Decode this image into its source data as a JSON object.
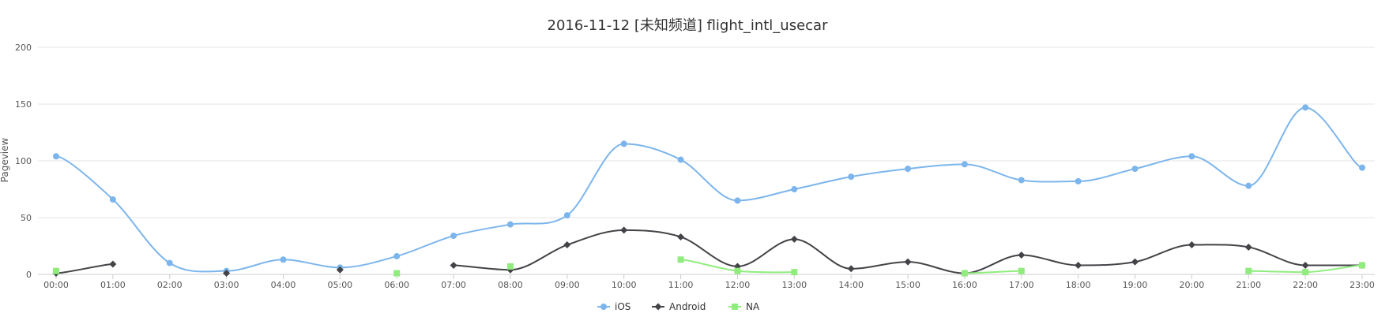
{
  "chart_data": {
    "type": "line",
    "title": "2016-11-12 [未知频道] flight_intl_usecar",
    "xlabel": "",
    "ylabel": "Pageview",
    "ylim": [
      0,
      200
    ],
    "yticks": [
      0,
      50,
      100,
      150,
      200
    ],
    "grid": true,
    "legend_position": "bottom-center",
    "categories": [
      "00:00",
      "01:00",
      "02:00",
      "03:00",
      "04:00",
      "05:00",
      "06:00",
      "07:00",
      "08:00",
      "09:00",
      "10:00",
      "11:00",
      "12:00",
      "13:00",
      "14:00",
      "15:00",
      "16:00",
      "17:00",
      "18:00",
      "19:00",
      "20:00",
      "21:00",
      "22:00",
      "23:00"
    ],
    "series": [
      {
        "name": "iOS",
        "color": "#7cb5ec",
        "marker": "circle",
        "values": [
          104,
          66,
          10,
          3,
          13,
          6,
          16,
          34,
          44,
          52,
          115,
          101,
          65,
          75,
          86,
          93,
          97,
          83,
          82,
          93,
          104,
          78,
          147,
          94
        ]
      },
      {
        "name": "Android",
        "color": "#434348",
        "marker": "diamond",
        "values": [
          1,
          9,
          null,
          1,
          null,
          4,
          null,
          8,
          4,
          26,
          39,
          33,
          7,
          31,
          5,
          11,
          1,
          17,
          8,
          11,
          26,
          24,
          8,
          8
        ]
      },
      {
        "name": "NA",
        "color": "#90ed7d",
        "marker": "square",
        "values": [
          3,
          null,
          null,
          null,
          null,
          null,
          1,
          null,
          7,
          null,
          null,
          13,
          3,
          2,
          null,
          null,
          1,
          3,
          null,
          null,
          null,
          3,
          2,
          8
        ]
      }
    ]
  }
}
